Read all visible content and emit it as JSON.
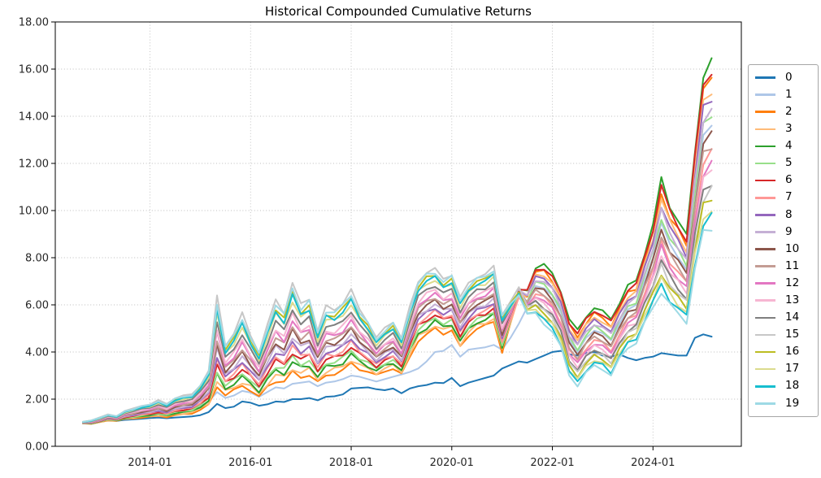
{
  "chart_data": {
    "type": "line",
    "title": "Historical Compounded Cumulative Returns",
    "xlabel": "",
    "ylabel": "",
    "ylim": [
      0,
      18
    ],
    "grid": "dotted",
    "legend_position": "right-outside",
    "ytick_values": [
      0,
      2,
      4,
      6,
      8,
      10,
      12,
      14,
      16,
      18
    ],
    "ytick_labels": [
      "0.00",
      "2.00",
      "4.00",
      "6.00",
      "8.00",
      "10.00",
      "12.00",
      "14.00",
      "16.00",
      "18.00"
    ],
    "xtick_labels": [
      "2014-01",
      "2016-01",
      "2018-01",
      "2020-01",
      "2022-01",
      "2024-01"
    ],
    "xtick_month_offsets": [
      16,
      40,
      64,
      88,
      112,
      136
    ],
    "x_start_date": "2012-09",
    "x_end_date": "2025-03",
    "x_dates": [
      "2012-09",
      "2012-11",
      "2013-01",
      "2013-03",
      "2013-05",
      "2013-07",
      "2013-09",
      "2013-11",
      "2014-01",
      "2014-03",
      "2014-05",
      "2014-07",
      "2014-09",
      "2014-11",
      "2015-01",
      "2015-03",
      "2015-05",
      "2015-07",
      "2015-09",
      "2015-11",
      "2016-01",
      "2016-03",
      "2016-05",
      "2016-07",
      "2016-09",
      "2016-11",
      "2017-01",
      "2017-03",
      "2017-05",
      "2017-07",
      "2017-09",
      "2017-11",
      "2018-01",
      "2018-03",
      "2018-05",
      "2018-07",
      "2018-09",
      "2018-11",
      "2019-01",
      "2019-03",
      "2019-05",
      "2019-07",
      "2019-09",
      "2019-11",
      "2020-01",
      "2020-03",
      "2020-05",
      "2020-07",
      "2020-09",
      "2020-11",
      "2021-01",
      "2021-03",
      "2021-05",
      "2021-07",
      "2021-09",
      "2021-11",
      "2022-01",
      "2022-03",
      "2022-05",
      "2022-07",
      "2022-09",
      "2022-11",
      "2023-01",
      "2023-03",
      "2023-05",
      "2023-07",
      "2023-09",
      "2023-11",
      "2024-01",
      "2024-03",
      "2024-05",
      "2024-07",
      "2024-09",
      "2024-11",
      "2025-01",
      "2025-03"
    ],
    "model": "Series 0 and 1 carry explicit values. Band series k: value[i] = envelope_low[i] + (envelope_high[i]-envelope_low[i]) * rank(i); rank blends rank_early -> rank_late linearly across the transition window (ordering of the bunch inverts during 2021).",
    "envelope_low": [
      0.97,
      0.95,
      1.02,
      1.1,
      1.08,
      1.15,
      1.18,
      1.22,
      1.25,
      1.28,
      1.24,
      1.32,
      1.35,
      1.4,
      1.55,
      1.75,
      2.55,
      2.2,
      2.35,
      2.55,
      2.4,
      2.1,
      2.5,
      2.8,
      2.75,
      3.1,
      2.95,
      3.05,
      2.7,
      3.0,
      3.1,
      3.2,
      3.5,
      3.3,
      3.15,
      3.0,
      3.2,
      3.3,
      3.05,
      3.8,
      4.5,
      4.7,
      5.0,
      4.8,
      4.9,
      4.2,
      4.7,
      5.0,
      5.1,
      5.3,
      4.0,
      4.8,
      5.6,
      5.2,
      5.6,
      5.2,
      4.9,
      4.2,
      3.0,
      2.6,
      3.1,
      3.4,
      3.3,
      3.0,
      3.7,
      4.2,
      4.4,
      5.2,
      5.9,
      6.6,
      6.0,
      5.6,
      5.3,
      7.5,
      9.0,
      9.3
    ],
    "envelope_high": [
      1.04,
      1.1,
      1.22,
      1.35,
      1.28,
      1.5,
      1.6,
      1.72,
      1.78,
      1.95,
      1.8,
      2.05,
      2.15,
      2.2,
      2.6,
      3.2,
      6.3,
      4.3,
      4.8,
      5.6,
      4.7,
      4.0,
      5.1,
      6.2,
      5.7,
      6.9,
      6.0,
      6.3,
      4.9,
      5.9,
      5.8,
      6.1,
      6.6,
      5.8,
      5.3,
      4.6,
      5.0,
      5.3,
      4.6,
      5.9,
      7.0,
      7.4,
      7.5,
      7.1,
      7.3,
      6.3,
      6.9,
      7.2,
      7.3,
      7.6,
      5.6,
      6.5,
      7.4,
      7.0,
      7.6,
      7.7,
      7.3,
      6.6,
      5.4,
      4.9,
      5.5,
      5.9,
      5.7,
      5.4,
      6.1,
      6.8,
      7.0,
      8.2,
      9.4,
      11.3,
      10.2,
      9.6,
      8.9,
      12.5,
      15.8,
      16.3
    ],
    "transition": {
      "start_index": 50,
      "end_index": 54
    },
    "jitter_amp": 0.03,
    "series": [
      {
        "name": "0",
        "color": "#1f77b4",
        "values": [
          1.0,
          0.98,
          1.07,
          1.1,
          1.08,
          1.12,
          1.14,
          1.17,
          1.2,
          1.22,
          1.19,
          1.22,
          1.24,
          1.27,
          1.32,
          1.45,
          1.8,
          1.62,
          1.68,
          1.9,
          1.85,
          1.72,
          1.78,
          1.9,
          1.88,
          2.0,
          2.0,
          2.05,
          1.95,
          2.1,
          2.12,
          2.2,
          2.45,
          2.48,
          2.5,
          2.42,
          2.38,
          2.45,
          2.25,
          2.45,
          2.55,
          2.6,
          2.7,
          2.68,
          2.9,
          2.55,
          2.7,
          2.8,
          2.9,
          3.0,
          3.3,
          3.45,
          3.6,
          3.55,
          3.7,
          3.85,
          4.0,
          4.05,
          3.9,
          3.85,
          3.95,
          4.0,
          3.85,
          3.8,
          3.9,
          3.75,
          3.65,
          3.75,
          3.8,
          3.95,
          3.9,
          3.85,
          3.85,
          4.6,
          4.75,
          4.65
        ]
      },
      {
        "name": "1",
        "color": "#aec7e8",
        "values": [
          1.0,
          1.02,
          1.1,
          1.2,
          1.15,
          1.28,
          1.32,
          1.36,
          1.38,
          1.45,
          1.4,
          1.48,
          1.52,
          1.55,
          1.7,
          1.9,
          2.3,
          2.05,
          2.15,
          2.35,
          2.28,
          2.1,
          2.3,
          2.5,
          2.45,
          2.65,
          2.7,
          2.75,
          2.55,
          2.7,
          2.75,
          2.85,
          3.0,
          2.95,
          2.85,
          2.75,
          2.85,
          2.95,
          3.05,
          3.15,
          3.3,
          3.6,
          4.0,
          4.05,
          4.3,
          3.8,
          4.1,
          4.15,
          4.2,
          4.3,
          4.1,
          4.6,
          5.2,
          5.9,
          6.8,
          6.7,
          6.4,
          5.7,
          4.5,
          4.0,
          4.6,
          4.9,
          4.8,
          4.5,
          5.2,
          5.8,
          6.0,
          7.0,
          8.0,
          9.5,
          8.6,
          8.0,
          7.5,
          10.6,
          13.2,
          13.6
        ]
      },
      {
        "name": "2",
        "color": "#ff7f0e",
        "rank_early": 0.0,
        "rank_late": 0.889
      },
      {
        "name": "3",
        "color": "#ffbb78",
        "rank_early": 0.06,
        "rank_late": 0.833
      },
      {
        "name": "4",
        "color": "#2ca02c",
        "rank_early": 0.12,
        "rank_late": 1.0
      },
      {
        "name": "5",
        "color": "#98df8a",
        "rank_early": 0.18,
        "rank_late": 0.667
      },
      {
        "name": "6",
        "color": "#d62728",
        "rank_early": 0.24,
        "rank_late": 0.944
      },
      {
        "name": "7",
        "color": "#ff9896",
        "rank_early": 0.29,
        "rank_late": 0.444
      },
      {
        "name": "8",
        "color": "#9467bd",
        "rank_early": 0.35,
        "rank_late": 0.778
      },
      {
        "name": "9",
        "color": "#c5b0d5",
        "rank_early": 0.41,
        "rank_late": 0.722
      },
      {
        "name": "10",
        "color": "#8c564b",
        "rank_early": 0.47,
        "rank_late": 0.556
      },
      {
        "name": "11",
        "color": "#c49c94",
        "rank_early": 0.53,
        "rank_late": 0.5
      },
      {
        "name": "12",
        "color": "#e377c2",
        "rank_early": 0.59,
        "rank_late": 0.389
      },
      {
        "name": "13",
        "color": "#f7b6d2",
        "rank_early": 0.65,
        "rank_late": 0.333
      },
      {
        "name": "14",
        "color": "#7f7f7f",
        "rank_early": 0.73,
        "rank_late": 0.278
      },
      {
        "name": "15",
        "color": "#c7c7c7",
        "rank_early": 1.0,
        "rank_late": 0.222
      },
      {
        "name": "16",
        "color": "#bcbd22",
        "rank_early": 0.9,
        "rank_late": 0.167
      },
      {
        "name": "17",
        "color": "#dbdb8d",
        "rank_early": 0.82,
        "rank_late": 0.111
      },
      {
        "name": "18",
        "color": "#17becf",
        "rank_early": 0.86,
        "rank_late": 0.056
      },
      {
        "name": "19",
        "color": "#9edae5",
        "rank_early": 0.95,
        "rank_late": 0.0
      }
    ],
    "style": {
      "spine_color": "#000000",
      "grid_color": "#bdbdbd",
      "tick_label_color": "#262626",
      "background": "#ffffff",
      "line_width": 2
    }
  }
}
